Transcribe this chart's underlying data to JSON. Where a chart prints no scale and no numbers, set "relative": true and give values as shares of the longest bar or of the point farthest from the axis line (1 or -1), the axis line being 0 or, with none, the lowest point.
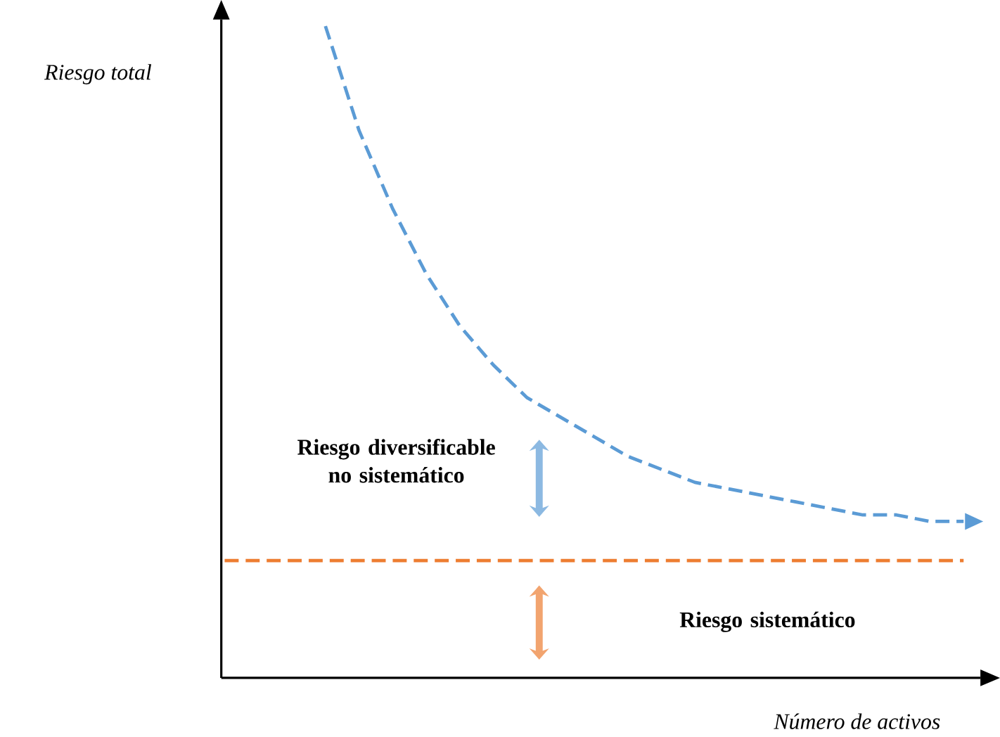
{
  "chart_data": {
    "type": "line",
    "relative": true,
    "xlabel": "Número de activos",
    "ylabel": "Riesgo total",
    "categories": [
      null,
      null,
      null,
      null,
      null,
      null,
      null,
      null,
      null,
      null,
      null,
      null,
      null,
      null,
      null,
      null,
      null,
      null,
      null,
      null,
      null,
      null,
      null
    ],
    "series": [
      {
        "color": "#5b9bd5",
        "values": [
          null,
          null,
          null,
          1.0,
          0.84,
          0.72,
          0.62,
          0.54,
          0.48,
          0.43,
          0.4,
          0.37,
          0.34,
          0.32,
          0.3,
          0.29,
          0.28,
          0.27,
          0.26,
          0.25,
          0.25,
          0.24,
          0.24
        ]
      },
      {
        "color": "#ed7d31",
        "values": [
          0.18,
          0.18,
          0.18,
          0.18,
          0.18,
          0.18,
          0.18,
          0.18,
          0.18,
          0.18,
          0.18,
          0.18,
          0.18,
          0.18,
          0.18,
          0.18,
          0.18,
          0.18,
          0.18,
          0.18,
          0.18,
          0.18,
          0.18
        ]
      }
    ],
    "line_style": "dashed",
    "annotations": [
      "Riesgo diversificable no sistemático",
      "Riesgo sistemático"
    ]
  }
}
